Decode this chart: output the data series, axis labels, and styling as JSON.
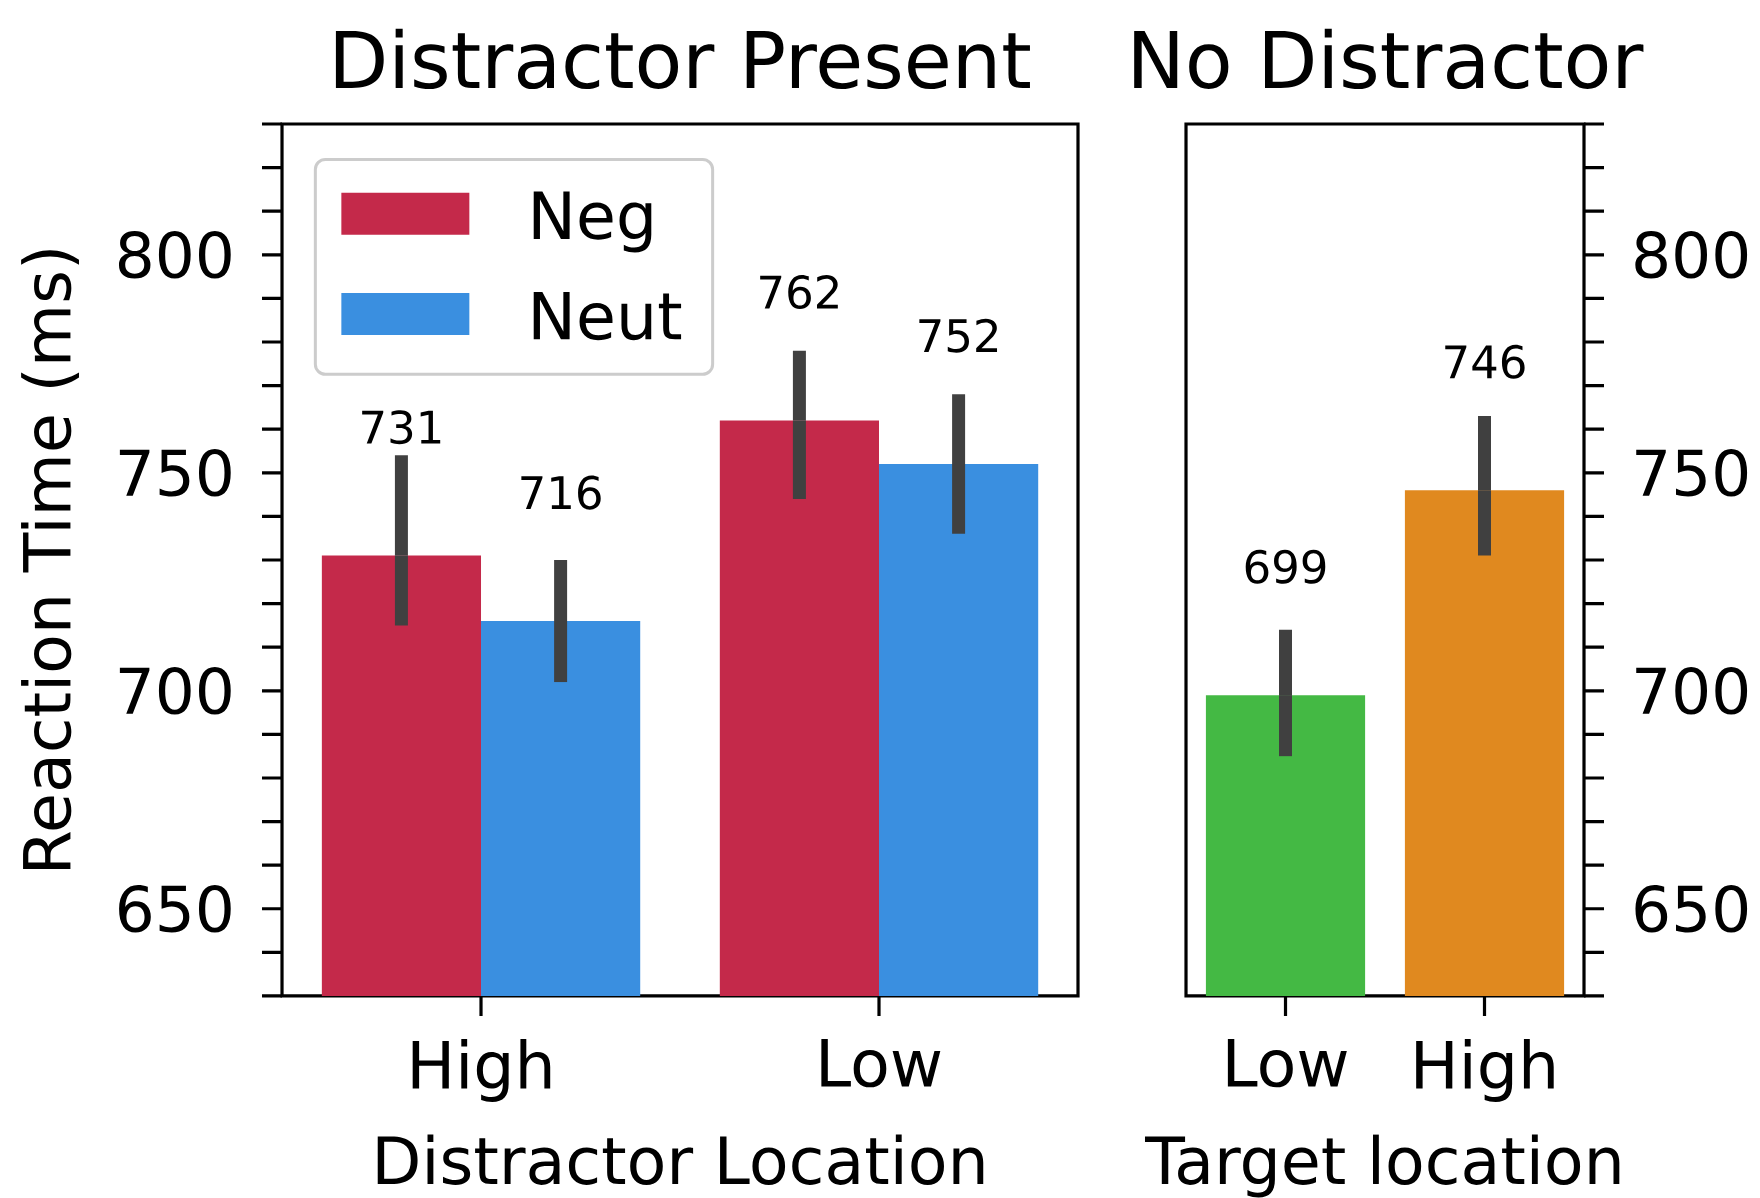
{
  "chart_data": [
    {
      "type": "bar",
      "title": "Distractor Present",
      "categories": [
        "High",
        "Low"
      ],
      "xlabel": "Distractor Location",
      "ylabel": "Reaction Time (ms)",
      "series": [
        {
          "name": "Neg",
          "color": "#c4294a",
          "values": [
            731,
            762
          ],
          "errors": [
            [
              715,
              754
            ],
            [
              744,
              778
            ]
          ]
        },
        {
          "name": "Neut",
          "color": "#3a8fe0",
          "values": [
            716,
            752
          ],
          "errors": [
            [
              702,
              730
            ],
            [
              736,
              768
            ]
          ]
        }
      ],
      "ylim": [
        630,
        830
      ],
      "yticks": [
        {
          "value": 630,
          "label": null
        },
        {
          "value": 640,
          "label": null
        },
        650,
        {
          "value": 660,
          "label": null
        },
        {
          "value": 670,
          "label": null
        },
        {
          "value": 680,
          "label": null
        },
        {
          "value": 690,
          "label": null
        },
        700,
        {
          "value": 710,
          "label": null
        },
        {
          "value": 720,
          "label": null
        },
        {
          "value": 730,
          "label": null
        },
        {
          "value": 740,
          "label": null
        },
        750,
        {
          "value": 760,
          "label": null
        },
        {
          "value": 770,
          "label": null
        },
        {
          "value": 780,
          "label": null
        },
        {
          "value": 790,
          "label": null
        },
        800,
        {
          "value": 810,
          "label": null
        },
        {
          "value": 820,
          "label": null
        },
        {
          "value": 830,
          "label": null
        }
      ],
      "data_labels": true,
      "legend": "top left"
    },
    {
      "type": "bar",
      "title": "No Distractor",
      "categories": [
        "Low",
        "High"
      ],
      "xlabel": "Target location",
      "series": [
        {
          "colors": [
            "#44b944",
            "#e0891f"
          ],
          "values": [
            699,
            746
          ],
          "errors": [
            [
              685,
              714
            ],
            [
              731,
              763
            ]
          ],
          "axis": "y2"
        }
      ],
      "y2lim": [
        630,
        830
      ],
      "y2ticks": [
        {
          "value": 630,
          "label": null
        },
        {
          "value": 640,
          "label": null
        },
        650,
        {
          "value": 660,
          "label": null
        },
        {
          "value": 670,
          "label": null
        },
        {
          "value": 680,
          "label": null
        },
        {
          "value": 690,
          "label": null
        },
        700,
        {
          "value": 710,
          "label": null
        },
        {
          "value": 720,
          "label": null
        },
        {
          "value": 730,
          "label": null
        },
        {
          "value": 740,
          "label": null
        },
        750,
        {
          "value": 760,
          "label": null
        },
        {
          "value": 770,
          "label": null
        },
        {
          "value": 780,
          "label": null
        },
        {
          "value": 790,
          "label": null
        },
        800,
        {
          "value": 810,
          "label": null
        },
        {
          "value": 820,
          "label": null
        },
        {
          "value": 830,
          "label": null
        }
      ],
      "data_labels": true
    }
  ]
}
